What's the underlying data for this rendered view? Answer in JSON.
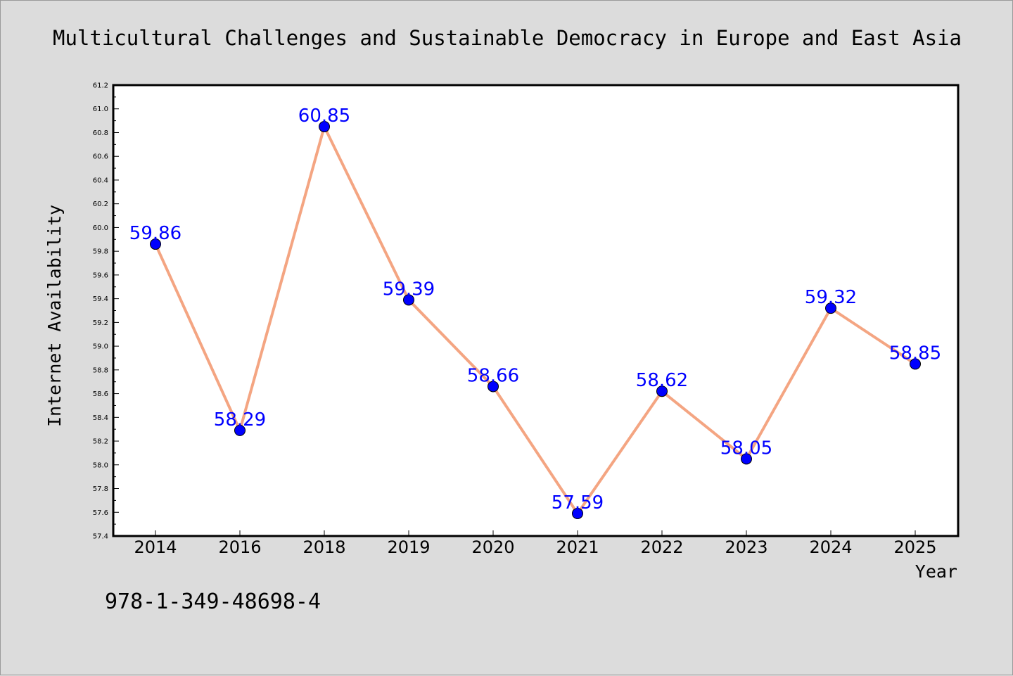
{
  "chart_data": {
    "type": "line",
    "title": "Multicultural Challenges and Sustainable Democracy in Europe and East Asia",
    "xlabel": "Year",
    "ylabel": "Internet Availability",
    "categories": [
      "2014",
      "2016",
      "2018",
      "2019",
      "2020",
      "2021",
      "2022",
      "2023",
      "2024",
      "2025"
    ],
    "series": [
      {
        "values": [
          59.86,
          58.29,
          60.85,
          59.39,
          58.66,
          57.59,
          58.62,
          58.05,
          59.32,
          58.85
        ],
        "labels": [
          "59.86",
          "58.29",
          "60.85",
          "59.39",
          "58.66",
          "57.59",
          "58.62",
          "58.05",
          "59.32",
          "58.85"
        ],
        "line_color": "#f4a582",
        "marker_color": "#0000ff",
        "label_color": "#0000ff"
      }
    ],
    "ylim": [
      57.4,
      61.2
    ],
    "y_ticks": [
      "57.4",
      "57.6",
      "57.8",
      "58.0",
      "58.2",
      "58.4",
      "58.6",
      "58.8",
      "59.0",
      "59.2",
      "59.4",
      "59.6",
      "59.8",
      "60.0",
      "60.2",
      "60.4",
      "60.6",
      "60.8",
      "61.0",
      "61.2"
    ],
    "grid": false,
    "legend": "none"
  },
  "footnote": "978-1-349-48698-4",
  "colors": {
    "background": "#dcdcdc",
    "plot_background": "#ffffff",
    "axis": "#000000"
  }
}
